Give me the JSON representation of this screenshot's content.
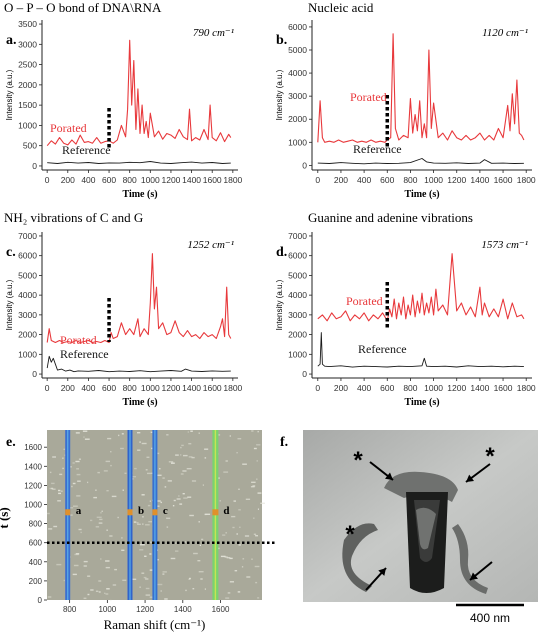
{
  "colors": {
    "porated": "#e8393c",
    "reference": "#1a1a1a",
    "axis": "#222222",
    "tick_text": "#333333",
    "panel_e_bg": "#a9a99a",
    "panel_f_bg": "#b8bab8"
  },
  "panels": [
    {
      "id": "a",
      "letter": "a.",
      "title": "O – P – O bond of DNA\\RNA",
      "wavenumber": "790 cm⁻¹",
      "xlabel": "Time (s)",
      "ylabel": "Intensity (a.u.)",
      "porated_label": "Porated",
      "reference_label": "Reference",
      "xticks": [
        0,
        200,
        400,
        600,
        800,
        1000,
        1200,
        1400,
        1600,
        1800
      ],
      "yticks": [
        0,
        500,
        1000,
        1500,
        2000,
        2500,
        3000,
        3500
      ],
      "ylim": [
        -100,
        3600
      ],
      "marker_x": 600
    },
    {
      "id": "b",
      "letter": "b.",
      "title": "Nucleic acid",
      "wavenumber": "1120 cm⁻¹",
      "xlabel": "Time (s)",
      "ylabel": "Intensity (a.u.)",
      "porated_label": "Porated",
      "reference_label": "Reference",
      "xticks": [
        0,
        200,
        400,
        600,
        800,
        1000,
        1200,
        1400,
        1600,
        1800
      ],
      "yticks": [
        0,
        1000,
        2000,
        3000,
        4000,
        5000,
        6000
      ],
      "ylim": [
        -200,
        6300
      ],
      "marker_x": 600
    },
    {
      "id": "c",
      "letter": "c.",
      "title": "NH₂ vibrations of C and G",
      "wavenumber": "1252 cm⁻¹",
      "xlabel": "Time (s)",
      "ylabel": "Intensity (a.u.)",
      "porated_label": "Porated",
      "reference_label": "Reference",
      "xticks": [
        0,
        200,
        400,
        600,
        800,
        1000,
        1200,
        1400,
        1600,
        1800
      ],
      "yticks": [
        0,
        1000,
        2000,
        3000,
        4000,
        5000,
        6000,
        7000
      ],
      "ylim": [
        -200,
        7200
      ],
      "marker_x": 600
    },
    {
      "id": "d",
      "letter": "d.",
      "title": "Guanine and adenine vibrations",
      "wavenumber": "1573 cm⁻¹",
      "xlabel": "Time (s)",
      "ylabel": "Intensity (a.u.)",
      "porated_label": "Porated",
      "reference_label": "Reference",
      "xticks": [
        0,
        200,
        400,
        600,
        800,
        1000,
        1200,
        1400,
        1600,
        1800
      ],
      "yticks": [
        0,
        1000,
        2000,
        3000,
        4000,
        5000,
        6000,
        7000
      ],
      "ylim": [
        -200,
        7200
      ],
      "marker_x": 600
    }
  ],
  "panel_e": {
    "letter": "e.",
    "xlabel": "Raman shift (cm⁻¹)",
    "ylabel": "t (s)",
    "xticks": [
      800,
      1000,
      1200,
      1400,
      1600
    ],
    "yticks": [
      0,
      200,
      400,
      600,
      800,
      1000,
      1200,
      1400,
      1600
    ],
    "xlim": [
      680,
      1820
    ],
    "ylim": [
      0,
      1780
    ],
    "band_labels": [
      "a",
      "b",
      "c",
      "d"
    ],
    "marker_t": 600
  },
  "panel_f": {
    "letter": "f.",
    "asterisk": "*",
    "scalebar_label": "400 nm"
  },
  "chart_data": [
    {
      "type": "line",
      "panel": "a",
      "title": "O – P – O bond of DNA\\RNA",
      "xlabel": "Time (s)",
      "ylabel": "Intensity (a.u.)",
      "xlim": [
        -50,
        1850
      ],
      "ylim": [
        -100,
        3600
      ],
      "series": [
        {
          "name": "Porated",
          "x": [
            0,
            40,
            80,
            120,
            160,
            200,
            240,
            280,
            320,
            360,
            400,
            440,
            480,
            520,
            560,
            600,
            640,
            680,
            720,
            760,
            780,
            800,
            820,
            840,
            860,
            880,
            900,
            920,
            940,
            960,
            980,
            1000,
            1040,
            1080,
            1120,
            1160,
            1200,
            1240,
            1280,
            1320,
            1360,
            1380,
            1400,
            1440,
            1480,
            1520,
            1560,
            1580,
            1600,
            1640,
            1680,
            1720,
            1760,
            1780
          ],
          "y": [
            500,
            620,
            540,
            700,
            560,
            520,
            640,
            540,
            760,
            580,
            600,
            560,
            700,
            560,
            600,
            620,
            560,
            640,
            1000,
            720,
            1400,
            3100,
            1500,
            2600,
            900,
            1900,
            800,
            1500,
            800,
            1100,
            700,
            1300,
            720,
            860,
            660,
            800,
            760,
            680,
            900,
            720,
            650,
            1400,
            620,
            700,
            640,
            900,
            650,
            1500,
            700,
            620,
            820,
            600,
            780,
            700
          ]
        },
        {
          "name": "Reference",
          "x": [
            0,
            100,
            200,
            300,
            400,
            500,
            600,
            700,
            800,
            900,
            1000,
            1100,
            1200,
            1300,
            1400,
            1500,
            1600,
            1700,
            1780
          ],
          "y": [
            80,
            60,
            90,
            70,
            85,
            60,
            75,
            70,
            90,
            80,
            110,
            70,
            60,
            80,
            95,
            70,
            85,
            60,
            70
          ]
        }
      ]
    },
    {
      "type": "line",
      "panel": "b",
      "title": "Nucleic acid",
      "xlabel": "Time (s)",
      "ylabel": "Intensity (a.u.)",
      "xlim": [
        -50,
        1850
      ],
      "ylim": [
        -200,
        6300
      ],
      "series": [
        {
          "name": "Porated",
          "x": [
            0,
            20,
            40,
            60,
            100,
            140,
            180,
            220,
            260,
            300,
            340,
            380,
            420,
            460,
            500,
            540,
            580,
            600,
            630,
            650,
            670,
            700,
            740,
            780,
            800,
            820,
            840,
            860,
            880,
            900,
            920,
            940,
            960,
            980,
            1000,
            1040,
            1080,
            1120,
            1160,
            1200,
            1240,
            1280,
            1320,
            1360,
            1400,
            1440,
            1480,
            1520,
            1560,
            1600,
            1640,
            1660,
            1680,
            1700,
            1720,
            1740,
            1760,
            1780
          ],
          "y": [
            1000,
            2800,
            1200,
            1000,
            1050,
            1000,
            1100,
            1000,
            1050,
            1100,
            1000,
            1050,
            1000,
            1100,
            1000,
            1050,
            1000,
            1100,
            1200,
            5700,
            1600,
            1100,
            1300,
            1200,
            2900,
            1400,
            2200,
            1500,
            2800,
            1200,
            1800,
            1200,
            5000,
            1600,
            2700,
            1200,
            1400,
            1100,
            1500,
            1200,
            1100,
            1300,
            1100,
            1200,
            1400,
            1100,
            1300,
            1100,
            1600,
            1200,
            2600,
            1500,
            3100,
            1800,
            3700,
            1400,
            1300,
            1100
          ]
        },
        {
          "name": "Reference",
          "x": [
            0,
            100,
            200,
            300,
            400,
            500,
            600,
            700,
            800,
            900,
            940,
            1000,
            1100,
            1200,
            1300,
            1400,
            1440,
            1500,
            1600,
            1700,
            1780
          ],
          "y": [
            100,
            80,
            120,
            90,
            70,
            100,
            80,
            90,
            120,
            300,
            150,
            100,
            90,
            110,
            80,
            100,
            250,
            90,
            100,
            80,
            90
          ]
        }
      ]
    },
    {
      "type": "line",
      "panel": "c",
      "title": "NH₂ vibrations of C and G",
      "xlabel": "Time (s)",
      "ylabel": "Intensity (a.u.)",
      "xlim": [
        -50,
        1850
      ],
      "ylim": [
        -200,
        7200
      ],
      "series": [
        {
          "name": "Porated",
          "x": [
            0,
            20,
            40,
            80,
            120,
            160,
            200,
            240,
            280,
            320,
            360,
            400,
            440,
            480,
            520,
            560,
            600,
            620,
            640,
            680,
            720,
            760,
            800,
            840,
            880,
            900,
            940,
            980,
            1000,
            1020,
            1040,
            1060,
            1080,
            1120,
            1160,
            1200,
            1240,
            1280,
            1320,
            1360,
            1400,
            1440,
            1480,
            1520,
            1560,
            1600,
            1640,
            1680,
            1700,
            1720,
            1740,
            1760,
            1780
          ],
          "y": [
            1600,
            2300,
            1700,
            1600,
            1700,
            1600,
            1650,
            1600,
            1700,
            1600,
            1650,
            1700,
            1600,
            1650,
            1600,
            1700,
            1600,
            2100,
            1800,
            1900,
            2600,
            2000,
            2300,
            2000,
            2800,
            1900,
            2300,
            2000,
            3600,
            6100,
            3300,
            4400,
            2300,
            2600,
            2000,
            2100,
            2700,
            2100,
            1900,
            2200,
            1900,
            2000,
            1800,
            2100,
            1900,
            2000,
            1800,
            2400,
            2800,
            1900,
            4400,
            2000,
            1800
          ]
        },
        {
          "name": "Reference",
          "x": [
            0,
            20,
            40,
            60,
            80,
            100,
            140,
            180,
            220,
            260,
            300,
            400,
            500,
            600,
            700,
            800,
            900,
            1000,
            1100,
            1200,
            1300,
            1340,
            1400,
            1500,
            1600,
            1700,
            1780
          ],
          "y": [
            300,
            900,
            600,
            800,
            500,
            200,
            250,
            150,
            200,
            120,
            160,
            140,
            180,
            120,
            150,
            130,
            170,
            120,
            150,
            180,
            140,
            250,
            150,
            130,
            160,
            140,
            150
          ]
        }
      ]
    },
    {
      "type": "line",
      "panel": "d",
      "title": "Guanine and adenine vibrations",
      "xlabel": "Time (s)",
      "ylabel": "Intensity (a.u.)",
      "xlim": [
        -50,
        1850
      ],
      "ylim": [
        -200,
        7200
      ],
      "series": [
        {
          "name": "Porated",
          "x": [
            0,
            40,
            80,
            120,
            160,
            200,
            240,
            280,
            320,
            360,
            400,
            440,
            480,
            520,
            560,
            600,
            620,
            640,
            660,
            680,
            700,
            720,
            740,
            760,
            780,
            800,
            820,
            840,
            860,
            880,
            900,
            920,
            940,
            960,
            980,
            1000,
            1020,
            1040,
            1080,
            1120,
            1160,
            1200,
            1240,
            1280,
            1320,
            1360,
            1400,
            1420,
            1440,
            1480,
            1520,
            1560,
            1600,
            1640,
            1680,
            1720,
            1760,
            1780
          ],
          "y": [
            2800,
            3000,
            2700,
            3100,
            2800,
            2900,
            3200,
            2700,
            3000,
            2800,
            3100,
            2700,
            3000,
            2800,
            3100,
            2700,
            3300,
            2900,
            3800,
            2800,
            3600,
            3000,
            3900,
            2800,
            3500,
            3000,
            4000,
            2900,
            3700,
            3100,
            4100,
            3000,
            3600,
            3100,
            3900,
            3000,
            4300,
            3200,
            3500,
            3000,
            6100,
            3200,
            3600,
            3000,
            3400,
            2900,
            4400,
            3000,
            3600,
            2900,
            3300,
            2900,
            3800,
            2800,
            3600,
            2900,
            3000,
            2800
          ]
        },
        {
          "name": "Reference",
          "x": [
            0,
            20,
            30,
            40,
            60,
            100,
            200,
            300,
            400,
            500,
            600,
            700,
            800,
            900,
            920,
            940,
            1000,
            1100,
            1200,
            1300,
            1400,
            1500,
            1600,
            1700,
            1780
          ],
          "y": [
            400,
            500,
            2100,
            500,
            400,
            380,
            420,
            350,
            400,
            380,
            360,
            400,
            380,
            420,
            800,
            400,
            380,
            400,
            360,
            420,
            380,
            400,
            370,
            400,
            380
          ]
        }
      ]
    },
    {
      "type": "heatmap",
      "panel": "e",
      "xlabel": "Raman shift (cm⁻¹)",
      "ylabel": "t (s)",
      "xlim": [
        680,
        1820
      ],
      "ylim": [
        0,
        1780
      ],
      "bands": [
        {
          "label": "a",
          "center": 790
        },
        {
          "label": "b",
          "center": 1120
        },
        {
          "label": "c",
          "center": 1252
        },
        {
          "label": "d",
          "center": 1573
        }
      ],
      "marker_t": 600
    }
  ]
}
